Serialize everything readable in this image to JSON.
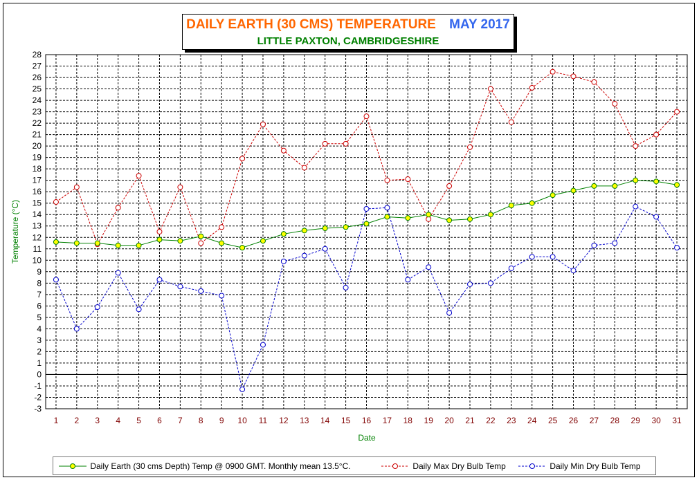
{
  "title": {
    "main": "DAILY EARTH (30 CMS) TEMPERATURE",
    "month": "MAY 2017",
    "subtitle": "LITTLE PAXTON, CAMBRIDGESHIRE"
  },
  "colors": {
    "earth": "#008000",
    "earth_marker": "#ffff00",
    "max": "#cc0000",
    "min": "#0000cc",
    "title_main": "#ff6600",
    "title_month": "#3366ee",
    "axis_label": "#008000",
    "x_tick": "#800000"
  },
  "chart_data": {
    "type": "line",
    "title": "DAILY EARTH (30 CMS) TEMPERATURE   MAY 2017",
    "subtitle": "LITTLE PAXTON, CAMBRIDGESHIRE",
    "xlabel": "Date",
    "ylabel": "Temperature (°C)",
    "ylim": [
      -3,
      28
    ],
    "xlim": [
      0.5,
      31.5
    ],
    "grid": true,
    "legend_position": "bottom",
    "x": [
      1,
      2,
      3,
      4,
      5,
      6,
      7,
      8,
      9,
      10,
      11,
      12,
      13,
      14,
      15,
      16,
      17,
      18,
      19,
      20,
      21,
      22,
      23,
      24,
      25,
      26,
      27,
      28,
      29,
      30,
      31
    ],
    "x_tick_labels": [
      "1",
      "2",
      "3",
      "4",
      "5",
      "6",
      "7",
      "8",
      "9",
      "10",
      "11",
      "12",
      "13",
      "14",
      "15",
      "16",
      "17",
      "18",
      "19",
      "20",
      "21",
      "22",
      "23",
      "24",
      "25",
      "26",
      "27",
      "28",
      "29",
      "30",
      "31"
    ],
    "y_tick_labels": [
      "-3",
      "-2",
      "-1",
      "0",
      "1",
      "2",
      "3",
      "4",
      "5",
      "6",
      "7",
      "8",
      "9",
      "10",
      "11",
      "12",
      "13",
      "14",
      "15",
      "16",
      "17",
      "18",
      "19",
      "20",
      "21",
      "22",
      "23",
      "24",
      "25",
      "26",
      "27",
      "28"
    ],
    "series": [
      {
        "name": "Daily Earth (30 cms Depth) Temp @ 0900 GMT. Monthly mean 13.5°C.",
        "style": "solid",
        "values": [
          11.6,
          11.5,
          11.5,
          11.3,
          11.3,
          11.8,
          11.7,
          12.1,
          11.5,
          11.1,
          11.7,
          12.3,
          12.6,
          12.8,
          12.9,
          13.2,
          13.8,
          13.7,
          14.0,
          13.5,
          13.6,
          14.0,
          14.8,
          15.0,
          15.7,
          16.1,
          16.5,
          16.5,
          17.0,
          16.9,
          16.6
        ]
      },
      {
        "name": "Daily Max Dry Bulb Temp",
        "style": "dashed",
        "values": [
          15.1,
          16.4,
          11.4,
          14.6,
          17.4,
          12.5,
          16.4,
          11.5,
          12.9,
          18.9,
          21.9,
          19.6,
          18.1,
          20.2,
          20.2,
          22.6,
          17.0,
          17.1,
          13.6,
          16.5,
          19.9,
          25.0,
          22.1,
          25.1,
          26.5,
          26.1,
          25.6,
          23.7,
          20.0,
          21.0,
          23.0
        ]
      },
      {
        "name": "Daily Min Dry Bulb Temp",
        "style": "dashed",
        "values": [
          8.3,
          4.0,
          5.9,
          8.9,
          5.7,
          8.3,
          7.7,
          7.3,
          6.9,
          -1.3,
          2.6,
          9.9,
          10.4,
          11.0,
          7.6,
          14.5,
          14.6,
          8.3,
          9.4,
          5.4,
          7.9,
          8.0,
          9.3,
          10.3,
          10.3,
          9.1,
          11.3,
          11.5,
          14.7,
          13.8,
          11.1
        ]
      }
    ]
  },
  "legend": [
    {
      "label": "Daily Earth (30 cms Depth) Temp @ 0900 GMT. Monthly mean 13.5°C."
    },
    {
      "label": "Daily Max Dry Bulb Temp"
    },
    {
      "label": "Daily Min Dry Bulb Temp"
    }
  ]
}
